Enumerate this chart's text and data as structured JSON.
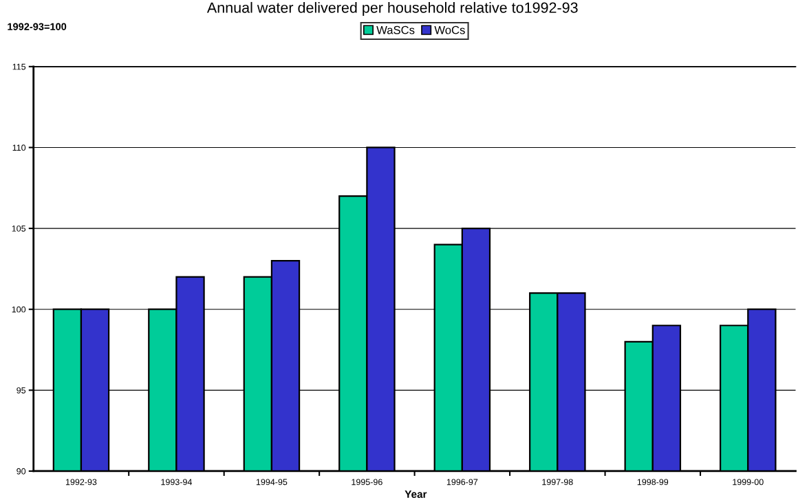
{
  "chart_data": {
    "type": "bar",
    "title": "Annual water delivered per household relative to1992-93",
    "ylabel": "1992-93=100",
    "xlabel": "Year",
    "categories": [
      "1992-93",
      "1993-94",
      "1994-95",
      "1995-96",
      "1996-97",
      "1997-98",
      "1998-99",
      "1999-00"
    ],
    "series": [
      {
        "name": "WaSCs",
        "color": "#00cc99",
        "values": [
          100,
          100,
          102,
          107,
          104,
          101,
          98,
          99
        ]
      },
      {
        "name": "WoCs",
        "color": "#3333cc",
        "values": [
          100,
          102,
          103,
          110,
          105,
          101,
          99,
          100
        ]
      }
    ],
    "ylim": [
      90,
      115
    ],
    "yticks": [
      90,
      95,
      100,
      105,
      110,
      115
    ],
    "grid": "y",
    "legend": "top"
  }
}
